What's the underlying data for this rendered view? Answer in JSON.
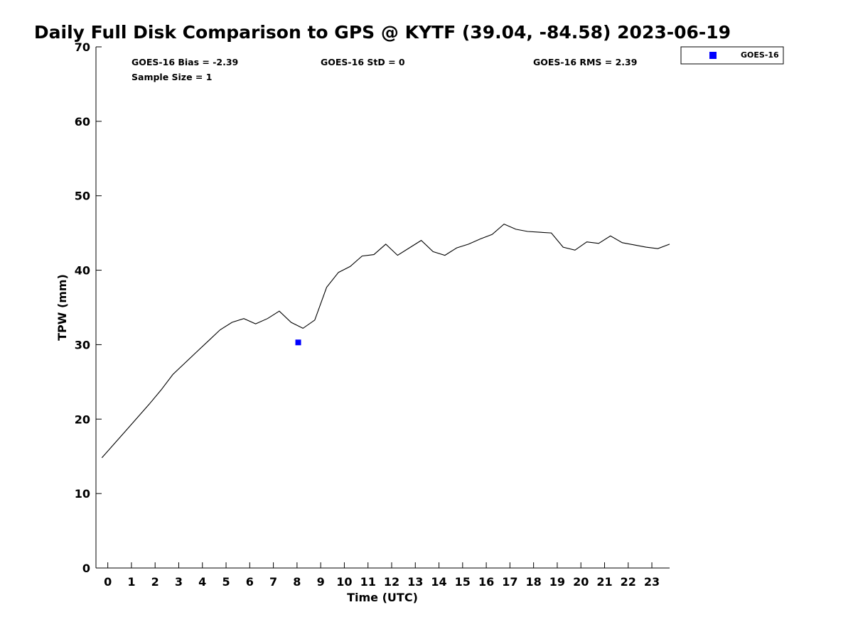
{
  "chart_data": {
    "type": "line",
    "title": "Daily Full Disk Comparison to GPS @ KYTF (39.04, -84.58) 2023-06-19",
    "xlabel": "Time (UTC)",
    "ylabel": "TPW (mm)",
    "xlim": [
      -0.5,
      23.75
    ],
    "ylim": [
      0,
      70
    ],
    "x_ticks": [
      0,
      1,
      2,
      3,
      4,
      5,
      6,
      7,
      8,
      9,
      10,
      11,
      12,
      13,
      14,
      15,
      16,
      17,
      18,
      19,
      20,
      21,
      22,
      23
    ],
    "y_ticks": [
      0,
      10,
      20,
      30,
      40,
      50,
      60,
      70
    ],
    "grid": false,
    "legend_position": "top-right (outside plot)",
    "legend": [
      "GOES-16"
    ],
    "series": [
      {
        "kind": "line",
        "color": "#000000",
        "x": [
          -0.25,
          0.25,
          0.75,
          1.25,
          1.75,
          2.25,
          2.75,
          3.25,
          3.75,
          4.25,
          4.75,
          5.25,
          5.75,
          6.25,
          6.75,
          7.25,
          7.75,
          8.25,
          8.75,
          9.25,
          9.75,
          10.25,
          10.75,
          11.25,
          11.75,
          12.25,
          12.75,
          13.25,
          13.75,
          14.25,
          14.75,
          15.25,
          15.75,
          16.25,
          16.75,
          17.25,
          17.75,
          18.25,
          18.75,
          19.25,
          19.75,
          20.25,
          20.75,
          21.25,
          21.75,
          22.25,
          22.75,
          23.25,
          23.75
        ],
        "values": [
          14.8,
          16.6,
          18.4,
          20.2,
          22.0,
          23.9,
          26.0,
          27.5,
          29.0,
          30.5,
          32.0,
          33.0,
          33.5,
          32.8,
          33.5,
          34.5,
          33.0,
          32.2,
          33.3,
          37.7,
          39.7,
          40.5,
          41.9,
          42.1,
          43.5,
          42.0,
          43.0,
          44.0,
          42.5,
          42.0,
          43.0,
          43.5,
          44.2,
          44.8,
          46.2,
          45.5,
          45.2,
          45.1,
          45.0,
          43.1,
          42.7,
          43.8,
          43.6,
          44.6,
          43.7,
          43.4,
          43.1,
          42.9,
          43.5
        ]
      },
      {
        "kind": "scatter",
        "name": "GOES-16",
        "color": "#0000ff",
        "marker": "square",
        "points": [
          {
            "x": 8.05,
            "y": 30.3
          }
        ]
      }
    ],
    "annotations": [
      "GOES-16 Bias = -2.39",
      "Sample Size = 1",
      "GOES-16 StD = 0",
      "GOES-16 RMS = 2.39"
    ]
  }
}
